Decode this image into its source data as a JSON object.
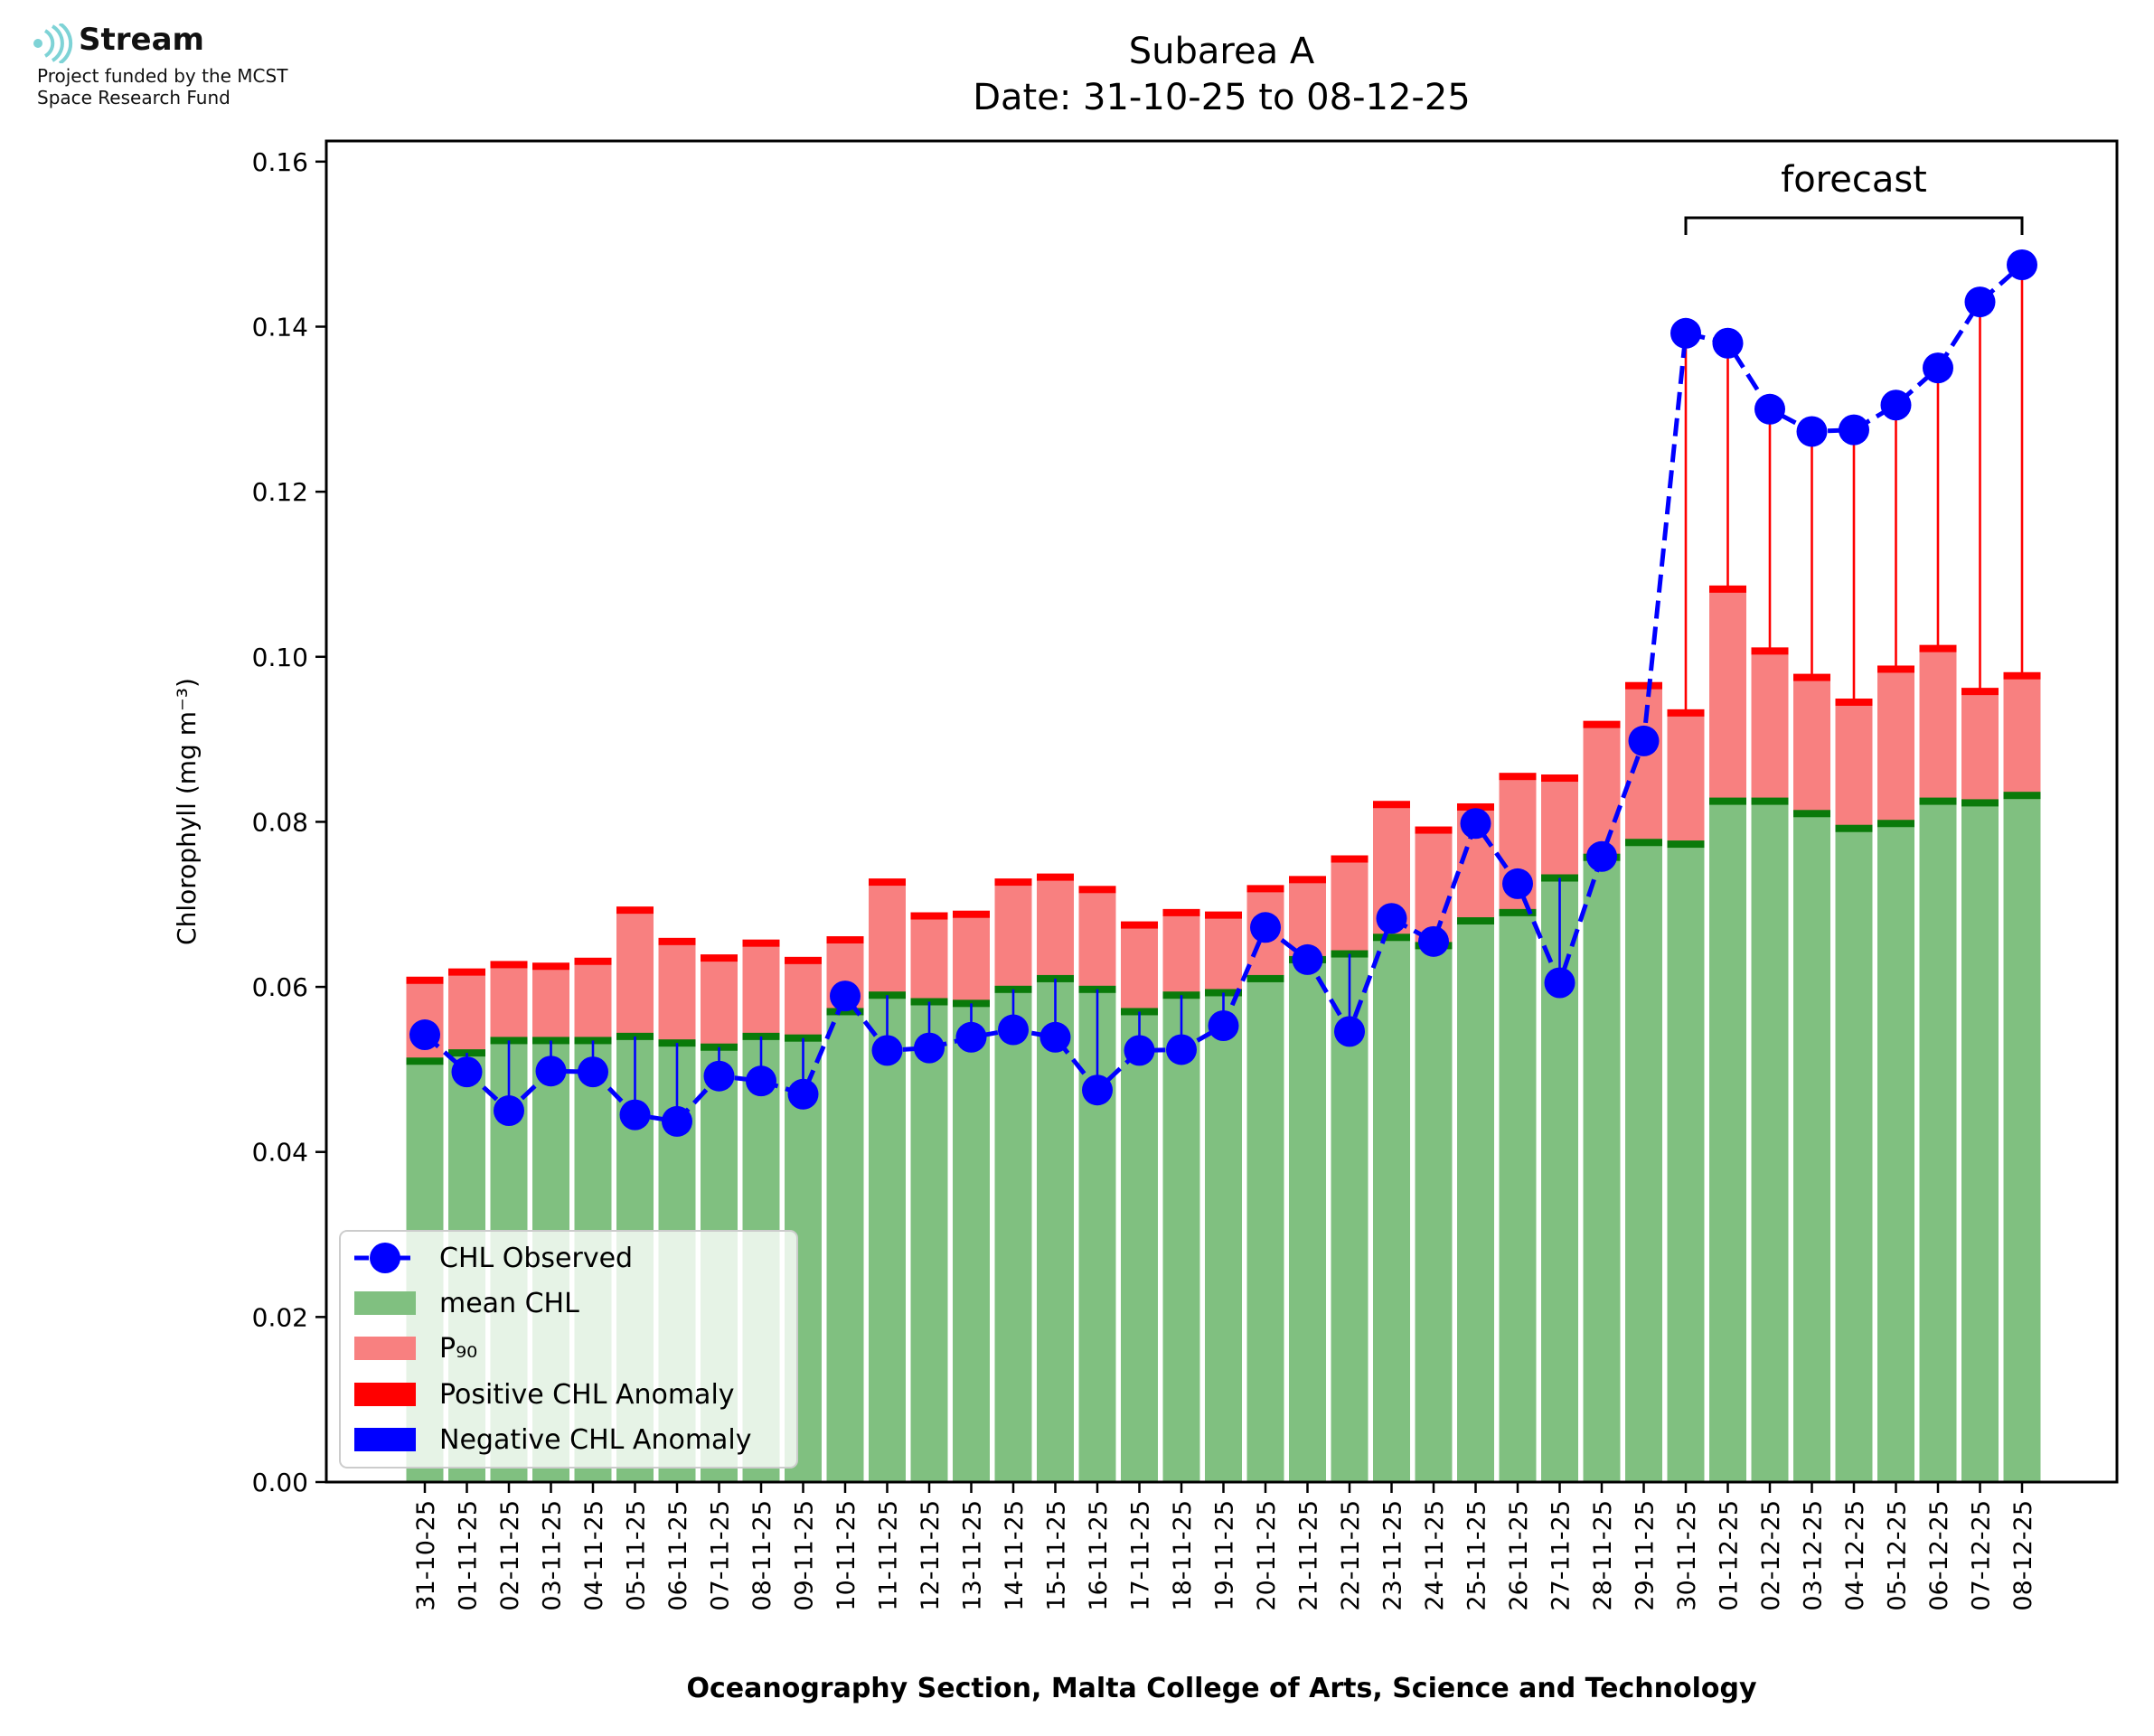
{
  "logo": {
    "name": "Stream",
    "line1": "Project funded by the MCST",
    "line2": "Space Research Fund",
    "color": "#7ed3d6"
  },
  "chart_data": {
    "type": "bar",
    "title": "Subarea A",
    "subtitle": "Date: 31-10-25 to 08-12-25",
    "xlabel": "Oceanography Section, Malta College of Arts, Science and Technology",
    "ylabel": "Chlorophyll (mg m⁻³)",
    "ylim": [
      0,
      0.1625
    ],
    "yticks": [
      "0.00",
      "0.02",
      "0.04",
      "0.06",
      "0.08",
      "0.10",
      "0.12",
      "0.14",
      "0.16"
    ],
    "categories": [
      "31-10-25",
      "01-11-25",
      "02-11-25",
      "03-11-25",
      "04-11-25",
      "05-11-25",
      "06-11-25",
      "07-11-25",
      "08-11-25",
      "09-11-25",
      "10-11-25",
      "11-11-25",
      "12-11-25",
      "13-11-25",
      "14-11-25",
      "15-11-25",
      "16-11-25",
      "17-11-25",
      "18-11-25",
      "19-11-25",
      "20-11-25",
      "21-11-25",
      "22-11-25",
      "23-11-25",
      "24-11-25",
      "25-11-25",
      "26-11-25",
      "27-11-25",
      "28-11-25",
      "29-11-25",
      "30-11-25",
      "01-12-25",
      "02-12-25",
      "03-12-25",
      "04-12-25",
      "05-12-25",
      "06-12-25",
      "07-12-25",
      "08-12-25"
    ],
    "series": [
      {
        "name": "mean CHL",
        "color": "#80c080",
        "edge_color": "#0a7a0a",
        "values": [
          0.051,
          0.052,
          0.0535,
          0.0535,
          0.0535,
          0.054,
          0.0532,
          0.0527,
          0.054,
          0.0538,
          0.057,
          0.059,
          0.0582,
          0.058,
          0.0597,
          0.061,
          0.0597,
          0.057,
          0.059,
          0.0593,
          0.061,
          0.0633,
          0.064,
          0.066,
          0.065,
          0.068,
          0.069,
          0.0732,
          0.0757,
          0.0775,
          0.0773,
          0.0825,
          0.0825,
          0.081,
          0.0792,
          0.0798,
          0.0825,
          0.0823,
          0.0832
        ]
      },
      {
        "name": "P₉₀",
        "color": "#f88080",
        "edge_color": "#ff0000",
        "values": [
          0.0608,
          0.0618,
          0.0627,
          0.0625,
          0.0631,
          0.0693,
          0.0655,
          0.0635,
          0.0653,
          0.0632,
          0.0657,
          0.0727,
          0.0686,
          0.0688,
          0.0727,
          0.0733,
          0.0718,
          0.0675,
          0.069,
          0.0687,
          0.0719,
          0.073,
          0.0755,
          0.0821,
          0.079,
          0.0818,
          0.0855,
          0.0853,
          0.0918,
          0.0965,
          0.0932,
          0.1082,
          0.1007,
          0.0975,
          0.0945,
          0.0985,
          0.101,
          0.0958,
          0.0977
        ]
      },
      {
        "name": "CHL Observed",
        "color": "#0000ff",
        "values": [
          0.0542,
          0.0497,
          0.045,
          0.0498,
          0.0497,
          0.0445,
          0.0437,
          0.0492,
          0.0486,
          0.047,
          0.0589,
          0.0523,
          0.0526,
          0.0539,
          0.0548,
          0.0539,
          0.0475,
          0.0523,
          0.0524,
          0.0553,
          0.0672,
          0.0633,
          0.0546,
          0.0683,
          0.0655,
          0.0798,
          0.0725,
          0.0605,
          0.0758,
          0.0898,
          0.1392,
          0.138,
          0.13,
          0.1273,
          0.1275,
          0.1305,
          0.135,
          0.143,
          0.1475
        ]
      }
    ],
    "legend": {
      "placement": "lower-left",
      "entries": [
        "CHL Observed",
        "mean CHL",
        "P₉₀",
        "Positive CHL Anomaly",
        "Negative CHL Anomaly"
      ],
      "colors": [
        "#0000ff",
        "#80c080",
        "#f88080",
        "#ff0000",
        "#0000ff"
      ]
    },
    "annotation": {
      "text": "forecast",
      "from_category": "30-11-25",
      "to_category": "08-12-25"
    },
    "anomaly_colors": {
      "positive": "#ff0000",
      "negative": "#0000ff"
    }
  }
}
